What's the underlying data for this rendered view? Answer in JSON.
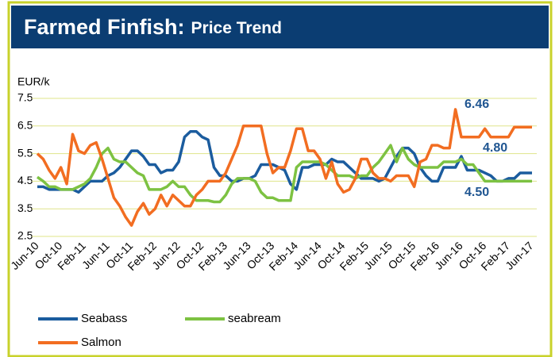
{
  "chart_data": {
    "type": "line",
    "title": "Farmed Finfish:",
    "subtitle": "Price Trend",
    "y_label": "EUR/k",
    "categories": [
      "Jun-10",
      null,
      null,
      null,
      "Oct-10",
      null,
      null,
      null,
      "Feb-11",
      null,
      null,
      null,
      "Jun-11",
      null,
      null,
      null,
      "Oct-11",
      null,
      null,
      null,
      "Feb-12",
      null,
      null,
      null,
      "Jun-12",
      null,
      null,
      null,
      "Oct-12",
      null,
      null,
      null,
      "Feb-13",
      null,
      null,
      null,
      "Jun-13",
      null,
      null,
      null,
      "Oct-13",
      null,
      null,
      null,
      "Feb-14",
      null,
      null,
      null,
      "Jun-14",
      null,
      null,
      null,
      "Oct-14",
      null,
      null,
      null,
      "Feb-15",
      null,
      null,
      null,
      "Jun-15",
      null,
      null,
      null,
      "Oct-15",
      null,
      null,
      null,
      "Feb-16",
      null,
      null,
      null,
      "Jun-16",
      null,
      null,
      null,
      "Oct-16",
      null,
      null,
      null,
      "Feb-17",
      null,
      null,
      null,
      "Jun-17"
    ],
    "series": [
      {
        "name": "Seabass",
        "color": "#1b5c9e",
        "end_label": "4.80",
        "values": [
          4.3,
          4.3,
          4.2,
          4.2,
          4.2,
          4.2,
          4.2,
          4.1,
          4.3,
          4.5,
          4.5,
          4.5,
          4.7,
          4.8,
          5.0,
          5.3,
          5.6,
          5.6,
          5.4,
          5.1,
          5.1,
          4.8,
          4.9,
          4.9,
          5.2,
          6.1,
          6.3,
          6.3,
          6.1,
          6.0,
          5.0,
          4.7,
          4.7,
          4.5,
          4.5,
          4.6,
          4.6,
          4.7,
          5.1,
          5.1,
          5.1,
          5.0,
          4.9,
          4.4,
          4.2,
          5.0,
          5.0,
          5.1,
          5.1,
          5.1,
          5.3,
          5.2,
          5.2,
          5.0,
          4.8,
          4.6,
          4.6,
          4.6,
          4.5,
          4.6,
          5.0,
          5.4,
          5.7,
          5.7,
          5.5,
          5.0,
          4.7,
          4.5,
          4.5,
          5.0,
          5.0,
          5.0,
          5.4,
          4.9,
          4.9,
          4.9,
          4.8,
          4.7,
          4.5,
          4.5,
          4.6,
          4.6,
          4.8,
          4.8,
          4.8
        ]
      },
      {
        "name": "seabream",
        "color": "#7dc242",
        "end_label": "4.50",
        "values": [
          4.65,
          4.5,
          4.3,
          4.3,
          4.2,
          4.2,
          4.2,
          4.3,
          4.4,
          4.6,
          5.0,
          5.5,
          5.7,
          5.3,
          5.2,
          5.2,
          5.0,
          4.8,
          4.7,
          4.2,
          4.2,
          4.2,
          4.3,
          4.5,
          4.3,
          4.3,
          4.0,
          3.8,
          3.8,
          3.8,
          3.75,
          3.75,
          4.0,
          4.4,
          4.6,
          4.6,
          4.6,
          4.5,
          4.1,
          3.9,
          3.9,
          3.8,
          3.8,
          3.8,
          5.0,
          5.2,
          5.2,
          5.2,
          5.2,
          5.1,
          4.9,
          4.7,
          4.7,
          4.7,
          4.6,
          4.7,
          4.7,
          5.0,
          5.2,
          5.5,
          5.8,
          5.2,
          5.7,
          5.3,
          5.1,
          5.0,
          5.0,
          5.0,
          5.0,
          5.2,
          5.2,
          5.2,
          5.3,
          5.1,
          5.1,
          4.8,
          4.5,
          4.5,
          4.5,
          4.5,
          4.5,
          4.5,
          4.5,
          4.5,
          4.5
        ]
      },
      {
        "name": "Salmon",
        "color": "#f26d21",
        "end_label": "6.46",
        "values": [
          5.5,
          5.3,
          4.9,
          4.6,
          5.0,
          4.4,
          6.2,
          5.6,
          5.5,
          5.8,
          5.9,
          5.3,
          4.6,
          3.9,
          3.6,
          3.2,
          2.9,
          3.4,
          3.7,
          3.3,
          3.5,
          4.0,
          3.6,
          4.0,
          3.8,
          3.6,
          3.6,
          4.0,
          4.2,
          4.5,
          4.5,
          4.5,
          4.8,
          5.3,
          5.8,
          6.5,
          6.5,
          6.5,
          6.5,
          5.5,
          4.8,
          5.0,
          5.0,
          5.6,
          6.4,
          6.4,
          5.6,
          5.6,
          5.3,
          4.6,
          5.2,
          4.4,
          4.1,
          4.2,
          4.6,
          5.3,
          5.3,
          4.8,
          4.6,
          4.6,
          4.5,
          4.7,
          4.7,
          4.7,
          4.3,
          5.2,
          5.3,
          5.8,
          5.8,
          5.7,
          5.7,
          7.1,
          6.1,
          6.1,
          6.1,
          6.1,
          6.4,
          6.1,
          6.1,
          6.1,
          6.1,
          6.46,
          6.46,
          6.46,
          6.46
        ]
      }
    ],
    "ylim": [
      2.5,
      7.5
    ],
    "yticks": [
      2.5,
      3.5,
      4.5,
      5.5,
      6.5,
      7.5
    ],
    "grid": true
  }
}
